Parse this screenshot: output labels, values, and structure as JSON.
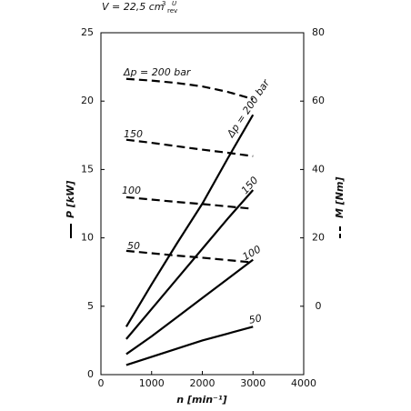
{
  "chart_data": {
    "type": "line",
    "header": {
      "volume": "V = 22,5 cm",
      "unit_exp": "3",
      "unit_num": "U",
      "unit_den": "rev"
    },
    "x_label": "n [min⁻¹]",
    "y_label": "P [kW]",
    "y2_label": "M [Nm]",
    "x": [
      500,
      1000,
      1500,
      2000,
      2500,
      3000
    ],
    "xlim": [
      0,
      4000
    ],
    "xticks": [
      0,
      1000,
      2000,
      3000,
      4000
    ],
    "ylim": [
      0,
      25
    ],
    "yticks": [
      0,
      5,
      10,
      15,
      20,
      25
    ],
    "y2lim": [
      -20,
      80
    ],
    "y2ticks": [
      0,
      20,
      40,
      60,
      80
    ],
    "series": [
      {
        "name": "Δp = 200 bar",
        "color": "#000000",
        "values": [
          3.5,
          6.6,
          9.6,
          12.5,
          15.8,
          19
        ]
      },
      {
        "name": "150",
        "color": "#000000",
        "values": [
          2.6,
          4.8,
          7,
          9.2,
          11.4,
          13.5
        ]
      },
      {
        "name": "100",
        "color": "#000000",
        "values": [
          1.5,
          2.8,
          4.2,
          5.6,
          7,
          8.4
        ]
      },
      {
        "name": "50",
        "color": "#000000",
        "values": [
          0.7,
          1.3,
          1.9,
          2.5,
          3,
          3.5
        ]
      },
      {
        "name": "Δp = 200 bar",
        "color": "#000000",
        "axis": "y2",
        "dashed": true,
        "values": [
          66.5,
          66,
          65.3,
          64.3,
          62.7,
          60.6
        ]
      },
      {
        "name": "150",
        "color": "#000000",
        "axis": "y2",
        "dashed": true,
        "values": [
          48.7,
          47.8,
          46.8,
          45.8,
          44.9,
          43.9
        ]
      },
      {
        "name": "100",
        "color": "#000000",
        "axis": "y2",
        "dashed": true,
        "values": [
          31.9,
          31.2,
          30.5,
          29.9,
          29.2,
          28.5
        ]
      },
      {
        "name": "50",
        "color": "#000000",
        "axis": "y2",
        "dashed": true,
        "values": [
          16.2,
          15.5,
          14.8,
          14.2,
          13.5,
          12.8
        ]
      }
    ]
  }
}
